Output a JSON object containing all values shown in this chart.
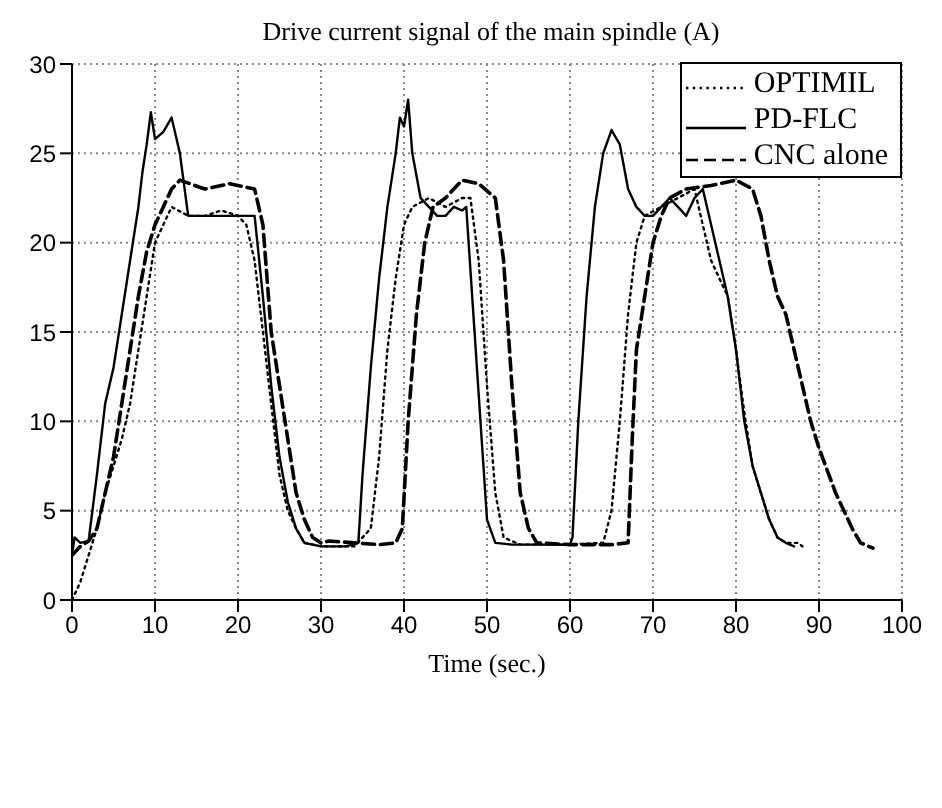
{
  "chart_data": {
    "type": "line",
    "title": "Drive current signal of the main spindle (A)",
    "xlabel": "Time (sec.)",
    "xlim": [
      0,
      100
    ],
    "xticks": [
      0,
      10,
      20,
      30,
      40,
      50,
      60,
      70,
      80,
      90,
      100
    ],
    "ylim": [
      0,
      30
    ],
    "yticks": [
      0,
      5,
      10,
      15,
      20,
      25,
      30
    ],
    "grid": true,
    "legend": "top right",
    "marker": "none",
    "series": [
      {
        "name": "OPTIMIL",
        "color": "#000000",
        "line_style": "dotted",
        "x": [
          0,
          1,
          2,
          3,
          4,
          5,
          6,
          7,
          8,
          9,
          10,
          11,
          12,
          14,
          16,
          18,
          20,
          21,
          22,
          23,
          24,
          25,
          26,
          27,
          28,
          30,
          34,
          36,
          37,
          38,
          39,
          40,
          41,
          43,
          45,
          47,
          48,
          49,
          50,
          51,
          52,
          54,
          60,
          64,
          65,
          66,
          67,
          68,
          69,
          71,
          73,
          75,
          76,
          77,
          78,
          79,
          80,
          81,
          82,
          83,
          84,
          85,
          86,
          87.5,
          88
        ],
        "values": [
          0,
          1,
          2.5,
          4,
          6,
          7.5,
          9,
          11,
          14,
          17,
          20,
          21,
          22,
          21.5,
          21.5,
          21.8,
          21.5,
          21,
          19,
          15,
          11,
          7,
          5,
          4,
          3.2,
          3,
          3,
          4,
          8,
          14,
          18,
          21,
          22,
          22.5,
          22,
          22.5,
          22.5,
          19,
          12,
          6,
          3.5,
          3.1,
          3.1,
          3.2,
          5,
          10,
          16,
          20,
          21.5,
          22,
          22.5,
          23,
          21,
          19,
          18,
          17,
          14,
          10.5,
          7.5,
          6,
          4.5,
          3.5,
          3.2,
          3.2,
          3
        ]
      },
      {
        "name": "PD-FLC",
        "color": "#000000",
        "line_style": "solid",
        "x": [
          0,
          0.3,
          1,
          2,
          3,
          4,
          5,
          6,
          7,
          8,
          8.5,
          9,
          9.5,
          10,
          11,
          12,
          12.5,
          13,
          14,
          16,
          18,
          20,
          22,
          23,
          24,
          25,
          26,
          27,
          28,
          30,
          33,
          34.5,
          35,
          36,
          37,
          38,
          39,
          39.5,
          40,
          40.5,
          41,
          42,
          43,
          44,
          45,
          46,
          47,
          47.5,
          48.5,
          49.5,
          50,
          51,
          53,
          56,
          60,
          60.3,
          61,
          62,
          63,
          64,
          65,
          66,
          67,
          68,
          69,
          70,
          71,
          72,
          73,
          74,
          75,
          76,
          77,
          78,
          79,
          80,
          81,
          82,
          83,
          84,
          85,
          86,
          87
        ],
        "values": [
          2.5,
          3.5,
          3.2,
          3.3,
          7,
          11,
          13,
          16,
          19,
          22,
          24,
          25.5,
          27.3,
          25.8,
          26.2,
          27,
          26,
          25,
          21.5,
          21.5,
          21.5,
          21.5,
          21.5,
          17,
          12,
          8,
          5.5,
          4,
          3.2,
          3,
          3,
          3.2,
          7,
          13,
          18,
          22,
          25,
          27,
          26.5,
          28,
          25,
          22.5,
          22,
          21.5,
          21.5,
          22,
          21.8,
          22,
          15,
          8,
          4.5,
          3.2,
          3.1,
          3.1,
          3.1,
          3.5,
          10,
          17,
          22,
          25,
          26.3,
          25.5,
          23,
          22,
          21.5,
          21.5,
          22,
          22.5,
          22,
          21.5,
          22.5,
          23,
          21,
          19,
          17,
          14,
          10,
          7.5,
          6,
          4.5,
          3.5,
          3.2,
          3
        ]
      },
      {
        "name": "CNC alone",
        "color": "#000000",
        "line_style": "dashed",
        "x": [
          0,
          1,
          2,
          3,
          4,
          5,
          6,
          7,
          8,
          9,
          10,
          11,
          12,
          13,
          16,
          19,
          22,
          23,
          24,
          25,
          26,
          27,
          28,
          29,
          30,
          31,
          34,
          37,
          39,
          39.8,
          40.5,
          41.5,
          42.5,
          43.5,
          45,
          47,
          49,
          51,
          52,
          53,
          54,
          55,
          56,
          60,
          65,
          67,
          67.5,
          68,
          69,
          70,
          71,
          72,
          74,
          77,
          80,
          82,
          83,
          84,
          85,
          86,
          88,
          89,
          90,
          92,
          93,
          94,
          95,
          96.5
        ],
        "values": [
          2.5,
          3,
          3.3,
          4,
          6,
          8,
          11,
          14,
          17,
          19.5,
          21,
          22,
          23,
          23.5,
          23,
          23.3,
          23,
          21,
          15,
          12,
          9,
          6,
          4.5,
          3.5,
          3.2,
          3.3,
          3.2,
          3.1,
          3.2,
          4,
          10,
          16,
          20,
          22,
          22.5,
          23.5,
          23.3,
          22.5,
          19,
          12,
          6,
          4,
          3.2,
          3.1,
          3.1,
          3.2,
          9,
          14,
          17,
          20,
          21.5,
          22.5,
          23,
          23.2,
          23.5,
          23,
          21.5,
          19,
          17,
          16,
          12,
          10,
          8.5,
          6,
          5,
          4,
          3.2,
          2.9
        ]
      }
    ]
  }
}
